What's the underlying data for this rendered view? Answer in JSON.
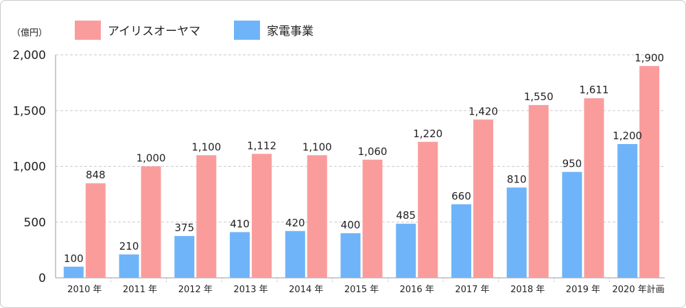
{
  "chart_data": {
    "type": "bar",
    "unit": "（億円）",
    "categories": [
      "2010 年",
      "2011 年",
      "2012 年",
      "2013 年",
      "2014 年",
      "2015 年",
      "2016 年",
      "2017 年",
      "2018 年",
      "2019 年",
      "2020 年計画"
    ],
    "series": [
      {
        "name": "家電事業",
        "color": "#6fb4f9",
        "values": [
          100,
          210,
          375,
          410,
          420,
          400,
          485,
          660,
          810,
          950,
          1200
        ],
        "labels": [
          "100",
          "210",
          "375",
          "410",
          "420",
          "400",
          "485",
          "660",
          "810",
          "950",
          "1,200"
        ]
      },
      {
        "name": "アイリスオーヤマ",
        "color": "#fb9c9c",
        "values": [
          848,
          1000,
          1100,
          1112,
          1100,
          1060,
          1220,
          1420,
          1550,
          1611,
          1900
        ],
        "labels": [
          "848",
          "1,000",
          "1,100",
          "1,112",
          "1,100",
          "1,060",
          "1,220",
          "1,420",
          "1,550",
          "1,611",
          "1,900"
        ]
      }
    ],
    "legend_order": [
      1,
      0
    ],
    "legend_position": "top-left",
    "ylim": [
      0,
      2000
    ],
    "yticks": [
      0,
      500,
      1000,
      1500,
      2000
    ],
    "ytick_labels": [
      "0",
      "500",
      "1,000",
      "1,500",
      "2,000"
    ],
    "grid": true
  }
}
